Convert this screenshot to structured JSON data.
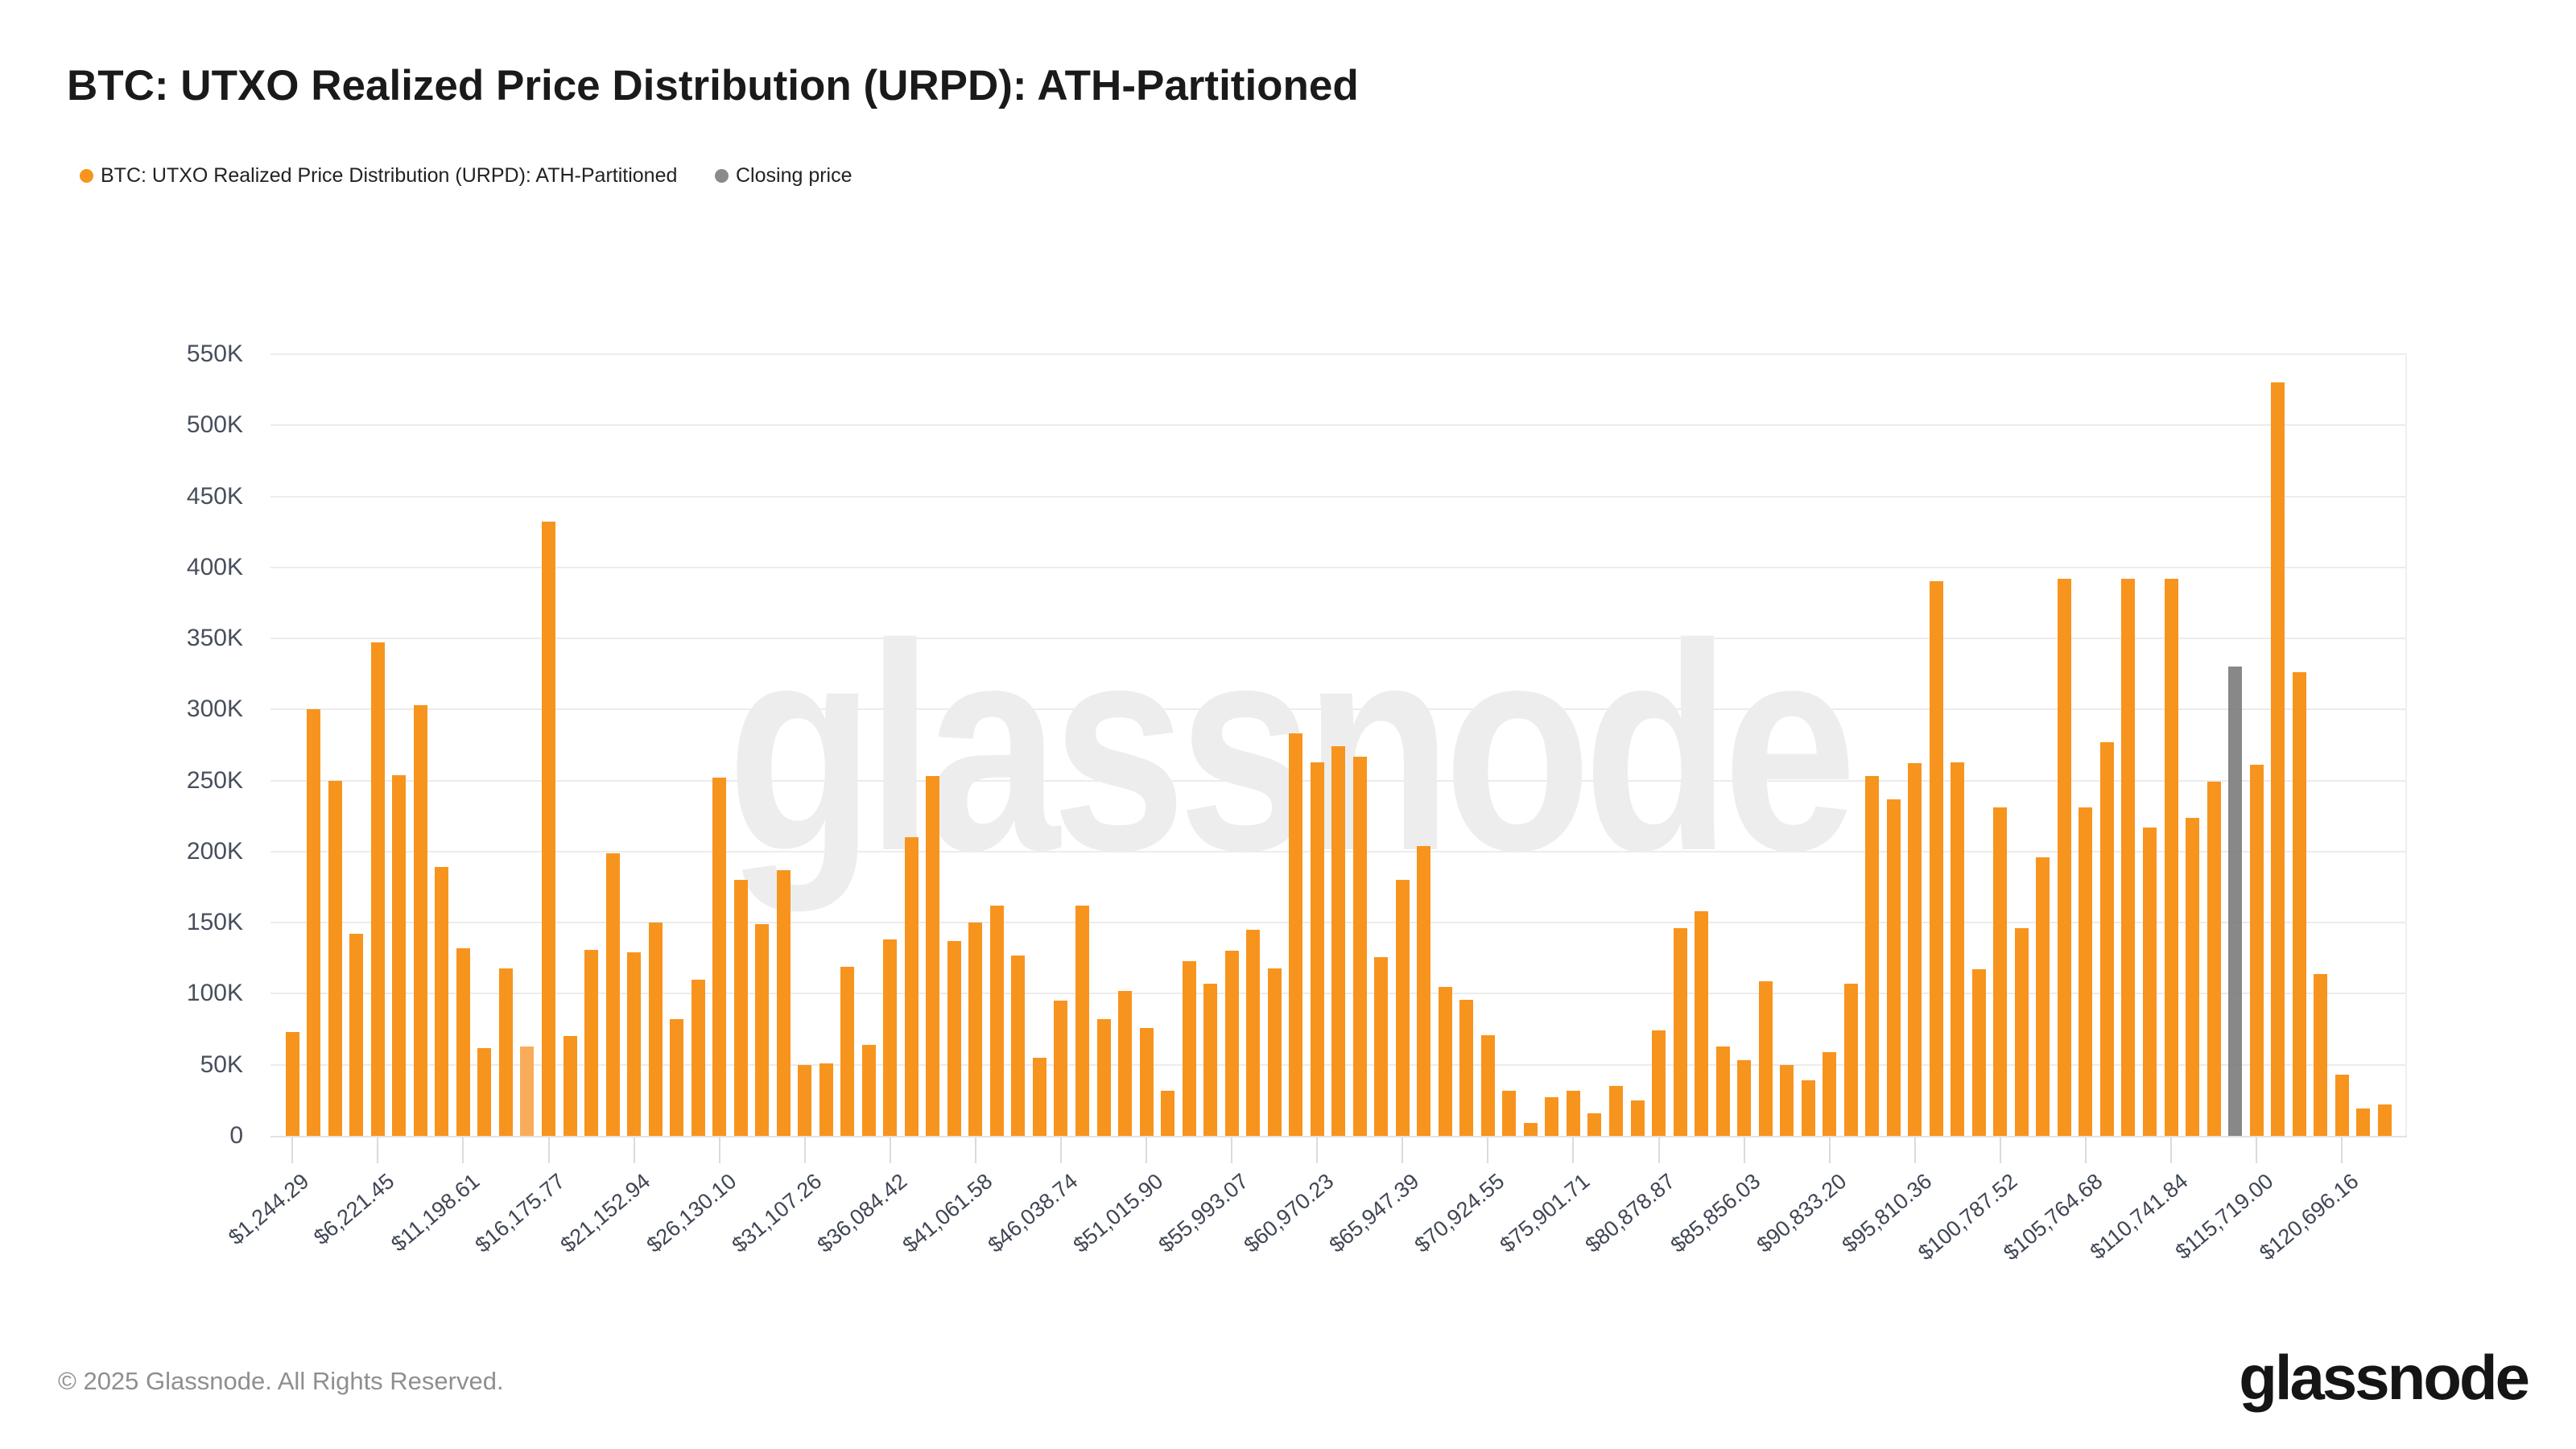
{
  "title": "BTC: UTXO Realized Price Distribution (URPD): ATH-Partitioned",
  "legend": {
    "series": {
      "label": "BTC: UTXO Realized Price Distribution (URPD): ATH-Partitioned",
      "color": "#F7941E"
    },
    "closing": {
      "label": "Closing price",
      "color": "#8A8A8A"
    }
  },
  "watermark": "glassnode",
  "footer": {
    "copyright": "© 2025 Glassnode. All Rights Reserved.",
    "logo": "glassnode"
  },
  "colors": {
    "bar": "#F7941E",
    "light_bar": "#F9AC5A",
    "closing_bar": "#8A8A8A",
    "grid": "#ECECEC",
    "title_text": "#1A1A1A",
    "axis_text": "#454D5B",
    "footer_text": "#8F8F8F"
  },
  "chart_data": {
    "type": "bar",
    "title": "BTC: UTXO Realized Price Distribution (URPD): ATH-Partitioned",
    "xlabel": "",
    "ylabel": "",
    "unit": "BTC",
    "ylim": [
      0,
      550000
    ],
    "grid": true,
    "legend_position": "top-left",
    "bin_width_usd": 1244.29,
    "first_bin_price_usd": 1244.29,
    "label_every_n_bins": 4,
    "y_tick_labels": [
      "0",
      "50K",
      "100K",
      "150K",
      "200K",
      "250K",
      "300K",
      "350K",
      "400K",
      "450K",
      "500K",
      "550K"
    ],
    "x_tick_labels": [
      "$1,244.29",
      "$6,221.45",
      "$11,198.61",
      "$16,175.77",
      "$21,152.94",
      "$26,130.10",
      "$31,107.26",
      "$36,084.42",
      "$41,061.58",
      "$46,038.74",
      "$51,015.90",
      "$55,993.07",
      "$60,970.23",
      "$65,947.39",
      "$70,924.55",
      "$75,901.71",
      "$80,878.87",
      "$85,856.03",
      "$90,833.20",
      "$95,810.36",
      "$100,787.52",
      "$105,764.68",
      "$110,741.84",
      "$115,719.00",
      "$120,696.16"
    ],
    "values_thousands": [
      73,
      300,
      250,
      142,
      347,
      254,
      303,
      189,
      132,
      62,
      118,
      63,
      432,
      70,
      131,
      199,
      129,
      150,
      82,
      110,
      252,
      180,
      149,
      187,
      50,
      51,
      119,
      64,
      138,
      210,
      253,
      137,
      150,
      162,
      127,
      55,
      95,
      162,
      82,
      102,
      76,
      32,
      123,
      107,
      130,
      145,
      118,
      283,
      263,
      274,
      267,
      126,
      180,
      204,
      105,
      96,
      71,
      32,
      9,
      27,
      32,
      16,
      35,
      25,
      74,
      146,
      158,
      63,
      53,
      109,
      50,
      39,
      59,
      107,
      253,
      237,
      262,
      390,
      263,
      117,
      231,
      146,
      196,
      392,
      231,
      277,
      392,
      217,
      392,
      224,
      249,
      330,
      261,
      530,
      326,
      114,
      43,
      19,
      22
    ],
    "closing_price_bar_index": 91,
    "light_bar_index": 11,
    "series": [
      {
        "name": "BTC: UTXO Realized Price Distribution (URPD): ATH-Partitioned",
        "color": "#F7941E"
      },
      {
        "name": "Closing price",
        "color": "#8A8A8A"
      }
    ]
  }
}
